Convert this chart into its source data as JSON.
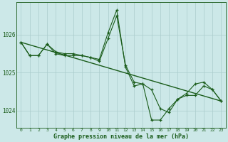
{
  "background_color": "#cce8e8",
  "grid_color": "#aacccc",
  "line_color": "#1a5c1a",
  "xlabel": "Graphe pression niveau de la mer (hPa)",
  "xlim": [
    -0.5,
    23.5
  ],
  "ylim": [
    1023.55,
    1026.85
  ],
  "yticks": [
    1024,
    1025,
    1026
  ],
  "ytick_labels": [
    "1024",
    "1025",
    "1026"
  ],
  "xticks": [
    0,
    1,
    2,
    3,
    4,
    5,
    6,
    7,
    8,
    9,
    10,
    11,
    12,
    13,
    14,
    15,
    16,
    17,
    18,
    19,
    20,
    21,
    22,
    23
  ],
  "series": [
    {
      "x": [
        0,
        1,
        2,
        3,
        4,
        5,
        6,
        7,
        8,
        9,
        10,
        11,
        12,
        13,
        14,
        15,
        16,
        17,
        18,
        19,
        20,
        21,
        22,
        23
      ],
      "y": [
        1025.8,
        1025.45,
        1025.45,
        1025.75,
        1025.55,
        1025.5,
        1025.5,
        1025.45,
        1025.4,
        1025.35,
        1026.05,
        1026.65,
        1025.15,
        1024.65,
        1024.7,
        1023.75,
        1023.75,
        1024.05,
        1024.3,
        1024.45,
        1024.7,
        1024.75,
        1024.55,
        1024.25
      ]
    },
    {
      "x": [
        0,
        1,
        2,
        3,
        4,
        5,
        6,
        7,
        8,
        9,
        10,
        11,
        12,
        13,
        14,
        15,
        16,
        17,
        18,
        19,
        20,
        21,
        22,
        23
      ],
      "y": [
        1025.8,
        1025.45,
        1025.45,
        1025.75,
        1025.5,
        1025.45,
        1025.45,
        1025.45,
        1025.4,
        1025.3,
        1025.9,
        1026.5,
        1025.2,
        1024.75,
        1024.7,
        1024.55,
        1024.05,
        1023.95,
        1024.3,
        1024.4,
        1024.4,
        1024.65,
        1024.55,
        1024.25
      ]
    },
    {
      "x": [
        0,
        23
      ],
      "y": [
        1025.8,
        1024.25
      ]
    }
  ],
  "figsize": [
    3.2,
    2.0
  ],
  "dpi": 100
}
